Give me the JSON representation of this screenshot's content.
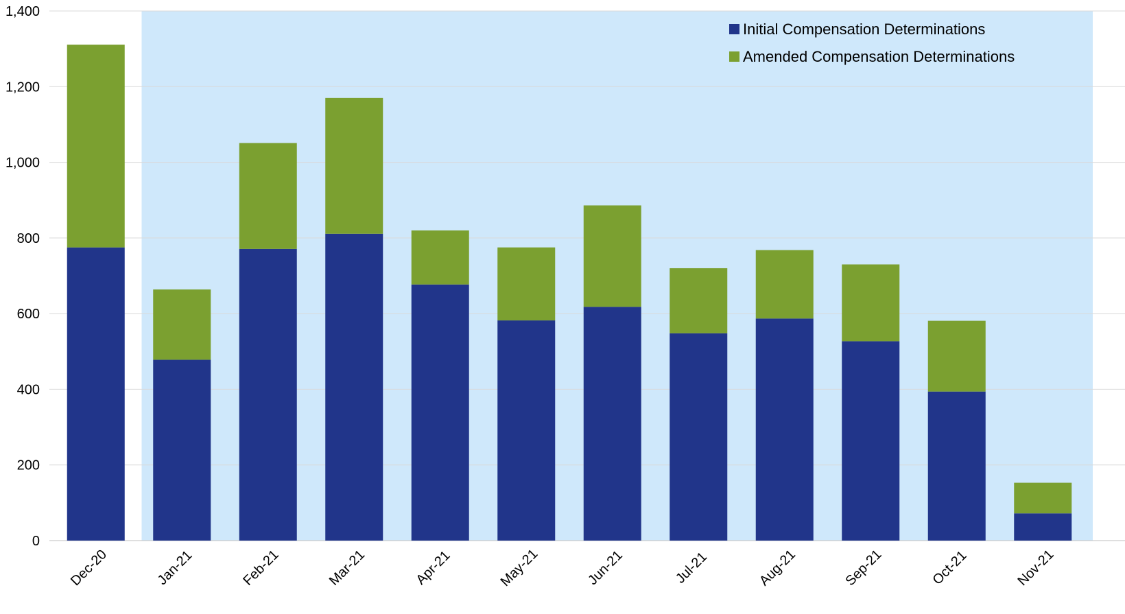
{
  "chart_data": {
    "type": "bar",
    "stacked": true,
    "title": "",
    "xlabel": "",
    "ylabel": "",
    "categories": [
      "Dec-20",
      "Jan-21",
      "Feb-21",
      "Mar-21",
      "Apr-21",
      "May-21",
      "Jun-21",
      "Jul-21",
      "Aug-21",
      "Sep-21",
      "Oct-21",
      "Nov-21"
    ],
    "series": [
      {
        "name": "Initial Compensation Determinations",
        "color": "#21358A",
        "values": [
          775,
          478,
          771,
          811,
          677,
          582,
          618,
          548,
          587,
          527,
          394,
          72
        ]
      },
      {
        "name": "Amended Compensation Determinations",
        "color": "#7BA030",
        "values": [
          536,
          186,
          280,
          359,
          143,
          193,
          268,
          172,
          181,
          203,
          187,
          81
        ]
      }
    ],
    "ylim": [
      0,
      1400
    ],
    "yticks": [
      0,
      200,
      400,
      600,
      800,
      1000,
      1200,
      1400
    ],
    "ytick_labels": [
      "0",
      "200",
      "400",
      "600",
      "800",
      "1,000",
      "1,200",
      "1,400"
    ],
    "grid": true,
    "legend_position": "top-right",
    "highlight_region": {
      "from_category": "Jan-21",
      "to_category": "Nov-21",
      "color": "#CFE8FB"
    },
    "gridline_color": "#D9D9D9"
  }
}
